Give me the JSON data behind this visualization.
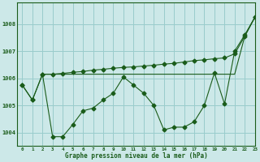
{
  "background_color": "#cce8e8",
  "grid_color": "#99cccc",
  "line_color": "#1a5c1a",
  "xlabel_color": "#1a5c1a",
  "title": "Graphe pression niveau de la mer (hPa)",
  "xlim": [
    -0.5,
    23
  ],
  "ylim": [
    1003.5,
    1008.8
  ],
  "yticks": [
    1004,
    1005,
    1006,
    1007,
    1008
  ],
  "xticks": [
    0,
    1,
    2,
    3,
    4,
    5,
    6,
    7,
    8,
    9,
    10,
    11,
    12,
    13,
    14,
    15,
    16,
    17,
    18,
    19,
    20,
    21,
    22,
    23
  ],
  "series1_x": [
    0,
    1,
    2,
    3,
    4,
    5,
    6,
    7,
    8,
    9,
    10,
    11,
    12,
    13,
    14,
    15,
    16,
    17,
    18,
    19,
    20,
    21,
    22,
    23
  ],
  "series1_y": [
    1005.75,
    1005.2,
    1006.15,
    1003.85,
    1003.85,
    1004.3,
    1004.8,
    1004.9,
    1005.2,
    1005.45,
    1006.05,
    1005.75,
    1005.45,
    1005.0,
    1004.1,
    1004.2,
    1004.2,
    1004.4,
    1005.0,
    1006.2,
    1005.05,
    1007.0,
    1007.6,
    1008.25
  ],
  "series2_x": [
    0,
    1,
    2,
    3,
    4,
    5,
    6,
    7,
    8,
    9,
    10,
    11,
    12,
    13,
    14,
    15,
    16,
    17,
    18,
    19,
    20,
    21,
    22,
    23
  ],
  "series2_y": [
    1005.75,
    1005.2,
    1006.15,
    1006.15,
    1006.18,
    1006.22,
    1006.25,
    1006.3,
    1006.33,
    1006.37,
    1006.4,
    1006.42,
    1006.45,
    1006.48,
    1006.52,
    1006.55,
    1006.6,
    1006.65,
    1006.68,
    1006.72,
    1006.75,
    1006.9,
    1007.55,
    1008.25
  ],
  "series3_x": [
    2,
    3,
    4,
    5,
    6,
    7,
    8,
    9,
    10,
    11,
    12,
    13,
    14,
    15,
    16,
    17,
    18,
    19,
    20,
    21,
    22,
    23
  ],
  "series3_y": [
    1006.15,
    1006.15,
    1006.15,
    1006.15,
    1006.15,
    1006.15,
    1006.15,
    1006.15,
    1006.15,
    1006.15,
    1006.15,
    1006.15,
    1006.15,
    1006.15,
    1006.15,
    1006.15,
    1006.15,
    1006.15,
    1006.15,
    1006.15,
    1007.55,
    1008.25
  ]
}
